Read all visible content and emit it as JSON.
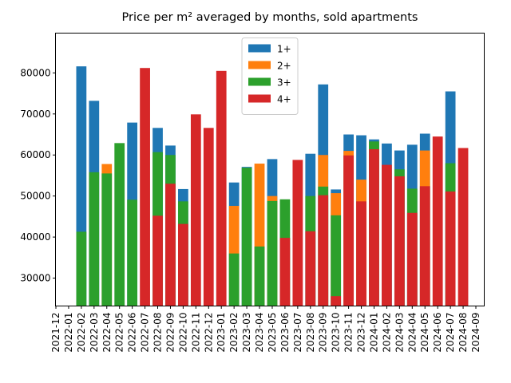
{
  "chart_data": {
    "type": "bar",
    "title": "Price per m² averaged by months, sold apartments",
    "x": [
      "2022-02",
      "2022-03",
      "2022-04",
      "2022-05",
      "2022-06",
      "2022-07",
      "2022-08",
      "2022-09",
      "2022-10",
      "2022-11",
      "2022-12",
      "2023-01",
      "2023-02",
      "2023-03",
      "2023-04",
      "2023-05",
      "2023-06",
      "2023-07",
      "2023-08",
      "2023-09",
      "2023-10",
      "2023-11",
      "2023-12",
      "2024-01",
      "2024-02",
      "2024-03",
      "2024-04",
      "2024-05",
      "2024-06",
      "2024-07",
      "2024-08"
    ],
    "series": [
      {
        "name": "1+",
        "color": "#1f77b4",
        "values": [
          81600,
          73200,
          null,
          null,
          67900,
          null,
          66600,
          62300,
          51700,
          null,
          null,
          null,
          53300,
          57100,
          null,
          59000,
          null,
          null,
          60300,
          77200,
          51600,
          65000,
          64800,
          63800,
          62800,
          61100,
          62500,
          65200,
          null,
          75500,
          null
        ]
      },
      {
        "name": "2+",
        "color": "#ff7f0e",
        "values": [
          null,
          null,
          57800,
          null,
          null,
          null,
          null,
          null,
          null,
          null,
          null,
          null,
          47600,
          null,
          57900,
          50000,
          null,
          null,
          null,
          60000,
          50700,
          61000,
          54000,
          null,
          null,
          null,
          null,
          61100,
          null,
          null,
          null
        ]
      },
      {
        "name": "3+",
        "color": "#2ca02c",
        "values": [
          41300,
          55800,
          55500,
          62900,
          49100,
          null,
          60700,
          60000,
          48700,
          null,
          null,
          null,
          36000,
          56900,
          37700,
          48800,
          49200,
          null,
          50000,
          52300,
          45300,
          null,
          null,
          63300,
          null,
          56500,
          51800,
          null,
          null,
          58000,
          null
        ]
      },
      {
        "name": "4+",
        "color": "#d62728",
        "values": [
          null,
          null,
          null,
          null,
          null,
          81200,
          45200,
          53000,
          43200,
          69900,
          66600,
          80500,
          null,
          null,
          null,
          null,
          39800,
          58800,
          41400,
          50200,
          25600,
          59900,
          48700,
          61400,
          57600,
          54800,
          45900,
          52400,
          64500,
          51100,
          61700
        ]
      }
    ],
    "xlim": [
      "2021-12",
      "2024-09"
    ],
    "xticks": [
      "2021-12",
      "2022-01",
      "2022-02",
      "2022-03",
      "2022-04",
      "2022-05",
      "2022-06",
      "2022-07",
      "2022-08",
      "2022-09",
      "2022-10",
      "2022-11",
      "2022-12",
      "2023-01",
      "2023-02",
      "2023-03",
      "2023-04",
      "2023-05",
      "2023-06",
      "2023-07",
      "2023-08",
      "2023-09",
      "2023-10",
      "2023-11",
      "2023-12",
      "2024-01",
      "2024-02",
      "2024-03",
      "2024-04",
      "2024-05",
      "2024-06",
      "2024-07",
      "2024-08",
      "2024-09"
    ],
    "ylim": [
      23200,
      89700
    ],
    "yticks": [
      30000,
      40000,
      50000,
      60000,
      70000,
      80000
    ],
    "legend": "upper center"
  }
}
